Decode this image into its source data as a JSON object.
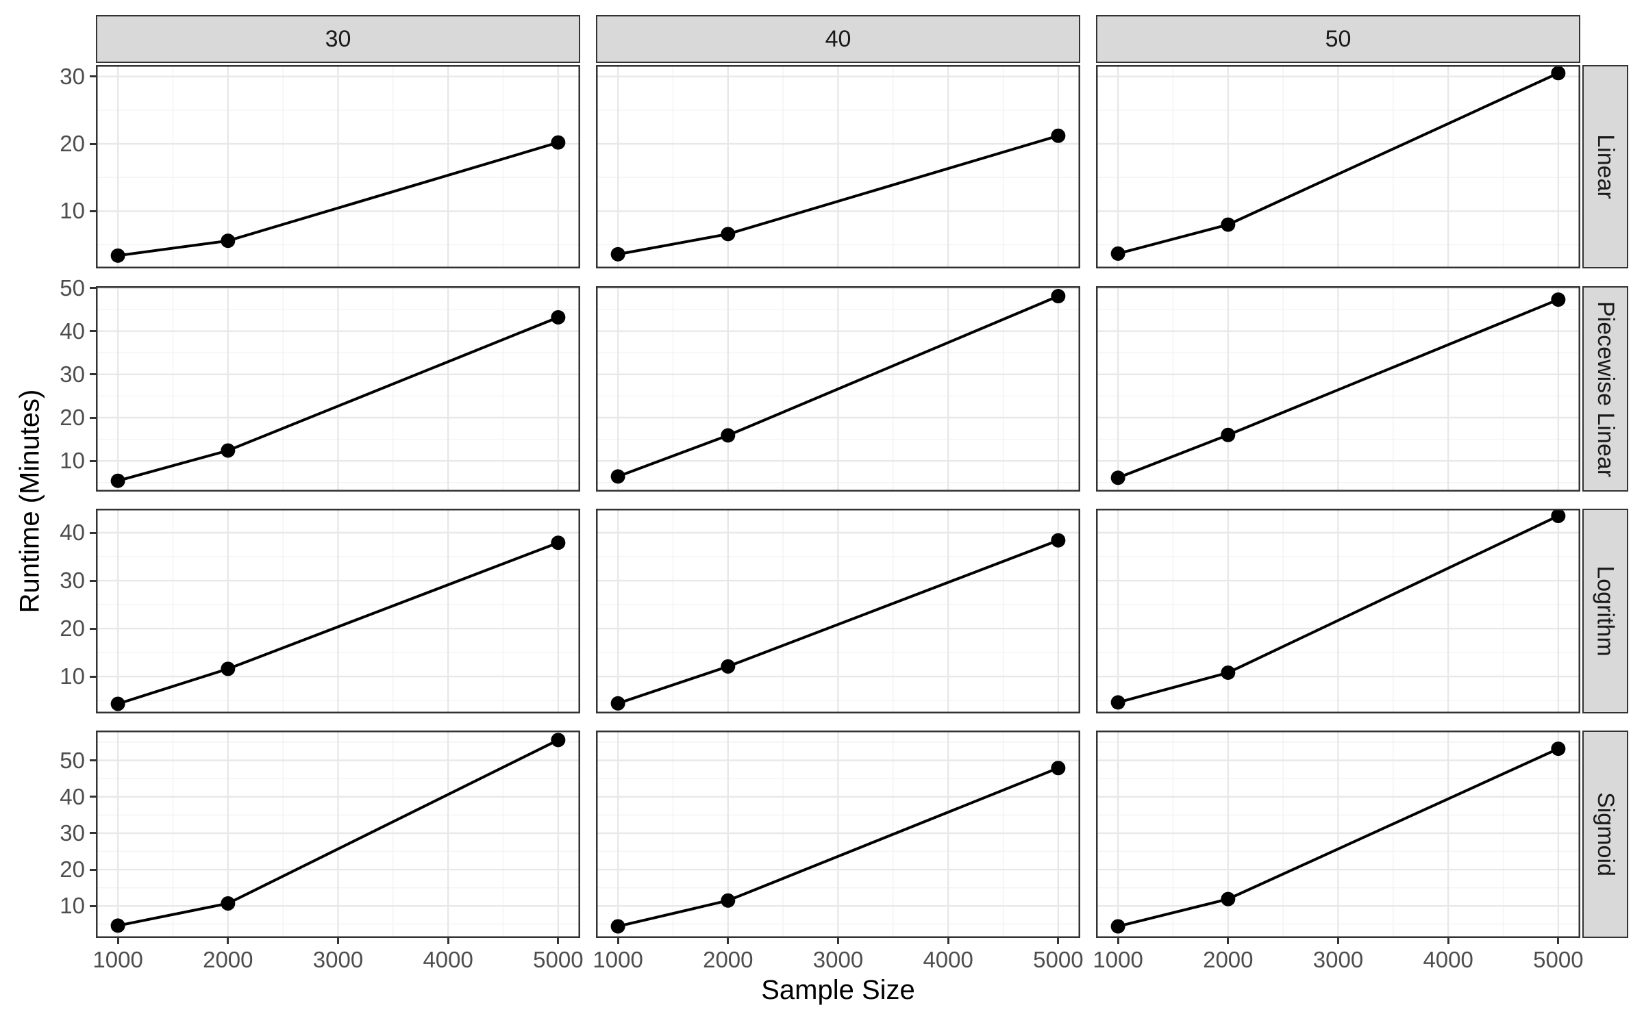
{
  "x_axis_title": "Sample Size",
  "y_axis_title": "Runtime (Minutes)",
  "col_facets": [
    "30",
    "40",
    "50"
  ],
  "row_facets": [
    "Linear",
    "Piecewise Linear",
    "Logrithm",
    "Sigmoid"
  ],
  "chart_data": {
    "type": "line",
    "x": [
      1000,
      2000,
      5000
    ],
    "x_ticks": [
      1000,
      2000,
      3000,
      4000,
      5000
    ],
    "x_tick_labels": [
      "1000",
      "2000",
      "3000",
      "4000",
      "5000"
    ],
    "xlim": [
      800,
      5200
    ],
    "xlabel": "Sample Size",
    "ylabel": "Runtime (Minutes)",
    "grid": "major and minor, light grey on white (theme_bw)",
    "legend": "none",
    "facet_columns": [
      "30",
      "40",
      "50"
    ],
    "rows": [
      {
        "label": "Linear",
        "ylim": [
          1.5,
          31.7
        ],
        "yticks": [
          10,
          20,
          30
        ]
      },
      {
        "label": "Piecewise Linear",
        "ylim": [
          2.9,
          50.4
        ],
        "yticks": [
          10,
          20,
          30,
          40,
          50
        ]
      },
      {
        "label": "Logrithm",
        "ylim": [
          2.3,
          45.0
        ],
        "yticks": [
          10,
          20,
          30,
          40
        ]
      },
      {
        "label": "Sigmoid",
        "ylim": [
          1.2,
          58.2
        ],
        "yticks": [
          10,
          20,
          30,
          40,
          50
        ]
      }
    ],
    "facets": [
      {
        "row": "Linear",
        "col": "30",
        "x": [
          1000,
          2000,
          5000
        ],
        "values": [
          3.4,
          5.6,
          20.2
        ]
      },
      {
        "row": "Linear",
        "col": "40",
        "x": [
          1000,
          2000,
          5000
        ],
        "values": [
          3.6,
          6.6,
          21.2
        ]
      },
      {
        "row": "Linear",
        "col": "50",
        "x": [
          1000,
          2000,
          5000
        ],
        "values": [
          3.7,
          8.0,
          30.5
        ]
      },
      {
        "row": "Piecewise Linear",
        "col": "30",
        "x": [
          1000,
          2000,
          5000
        ],
        "values": [
          5.4,
          12.4,
          43.2
        ]
      },
      {
        "row": "Piecewise Linear",
        "col": "40",
        "x": [
          1000,
          2000,
          5000
        ],
        "values": [
          6.4,
          15.9,
          48.1
        ]
      },
      {
        "row": "Piecewise Linear",
        "col": "50",
        "x": [
          1000,
          2000,
          5000
        ],
        "values": [
          6.1,
          16.0,
          47.3
        ]
      },
      {
        "row": "Logrithm",
        "col": "30",
        "x": [
          1000,
          2000,
          5000
        ],
        "values": [
          4.3,
          11.6,
          37.9
        ]
      },
      {
        "row": "Logrithm",
        "col": "40",
        "x": [
          1000,
          2000,
          5000
        ],
        "values": [
          4.4,
          12.1,
          38.4
        ]
      },
      {
        "row": "Logrithm",
        "col": "50",
        "x": [
          1000,
          2000,
          5000
        ],
        "values": [
          4.6,
          10.8,
          43.5
        ]
      },
      {
        "row": "Sigmoid",
        "col": "30",
        "x": [
          1000,
          2000,
          5000
        ],
        "values": [
          4.6,
          10.7,
          55.6
        ]
      },
      {
        "row": "Sigmoid",
        "col": "40",
        "x": [
          1000,
          2000,
          5000
        ],
        "values": [
          4.4,
          11.5,
          47.9
        ]
      },
      {
        "row": "Sigmoid",
        "col": "50",
        "x": [
          1000,
          2000,
          5000
        ],
        "values": [
          4.4,
          11.9,
          53.2
        ]
      }
    ],
    "colors": {
      "series_line": "#000000",
      "point_fill": "#000000",
      "strip_fill": "#d9d9d9",
      "strip_text": "#1a1a1a",
      "panel_border": "#333333",
      "grid_major": "#e8e8e8",
      "grid_minor": "#f3f3f3",
      "tick_text": "#4d4d4d",
      "axis_title_text": "#000000"
    }
  }
}
